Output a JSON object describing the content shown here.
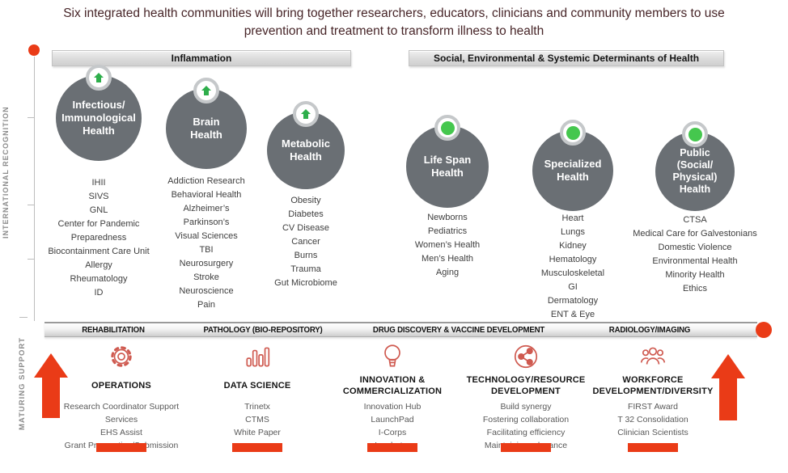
{
  "title": "Six integrated health communities will bring together researchers, educators, clinicians and community members to use prevention and treatment to transform illness to health",
  "axes": {
    "left_upper_label": "INTERNATIONAL RECOGNITION",
    "left_lower_label": "MATURING SUPPORT"
  },
  "group_headers": {
    "left": "Inflammation",
    "right": "Social, Environmental & Systemic Determinants of Health"
  },
  "communities": [
    {
      "name": "Infectious/ Immunological Health",
      "badge": "growth-arrow",
      "items": [
        "IHII",
        "SIVS",
        "GNL",
        "Center for Pandemic Preparedness",
        "Biocontainment Care Unit",
        "Allergy",
        "Rheumatology",
        "ID"
      ]
    },
    {
      "name": "Brain Health",
      "badge": "growth-arrow",
      "items": [
        "Addiction Research",
        "Behavioral Health",
        "Alzheimer’s",
        "Parkinson’s",
        "Visual Sciences",
        "TBI",
        "Neurosurgery",
        "Stroke",
        "Neuroscience",
        "Pain"
      ]
    },
    {
      "name": "Metabolic Health",
      "badge": "growth-arrow",
      "items": [
        "Obesity",
        "Diabetes",
        "CV Disease",
        "Cancer",
        "Burns",
        "Trauma",
        "Gut Microbiome"
      ]
    },
    {
      "name": "Life Span Health",
      "badge": "green-dot",
      "items": [
        "Newborns",
        "Pediatrics",
        "Women’s Health",
        "Men’s Health",
        "Aging"
      ]
    },
    {
      "name": "Specialized Health",
      "badge": "green-dot",
      "items": [
        "Heart",
        "Lungs",
        "Kidney",
        "Hematology",
        "Musculoskeletal",
        "GI",
        "Dermatology",
        "ENT & Eye"
      ]
    },
    {
      "name": "Public (Social/ Physical) Health",
      "badge": "green-dot",
      "items": [
        "CTSA",
        "Medical Care for Galvestonians",
        "Domestic Violence",
        "Environmental Health",
        "Minority Health",
        "Ethics"
      ]
    }
  ],
  "core_services": [
    "REHABILITATION",
    "PATHOLOGY (BIO-REPOSITORY)",
    "DRUG DISCOVERY & VACCINE DEVELOPMENT",
    "RADIOLOGY/IMAGING"
  ],
  "support_columns": [
    {
      "icon": "gear-icon",
      "title": "OPERATIONS",
      "items": [
        "Research Coordinator Support Services",
        "EHS Assist",
        "Grant Preparation/Submission"
      ]
    },
    {
      "icon": "bar-chart-icon",
      "title": "DATA SCIENCE",
      "items": [
        "Trinetx",
        "CTMS",
        "White Paper"
      ]
    },
    {
      "icon": "lightbulb-icon",
      "title": "INNOVATION & COMMERCIALIZATION",
      "items": [
        "Innovation Hub",
        "LaunchPad",
        "I-Corps",
        "Incubator"
      ]
    },
    {
      "icon": "share-network-icon",
      "title": "TECHNOLOGY/RESOURCE DEVELOPMENT",
      "items": [
        "Build synergy",
        "Fostering collaboration",
        "Facilitating efficiency",
        "Maintaining relevance"
      ]
    },
    {
      "icon": "people-icon",
      "title": "WORKFORCE DEVELOPMENT/DIVERSITY",
      "items": [
        "FIRST Award",
        "T 32 Consolidation",
        "Clinician Scientists"
      ]
    }
  ],
  "colors": {
    "accent_red": "#EA3B17",
    "icon_stroke": "#CF5A50",
    "circle_gray": "#6A6F74",
    "badge_silver": "#C5C8CA",
    "green_arrow": "#2EAE4B",
    "green_dot": "#45C74E",
    "header_bar": "#D9D9D9",
    "title_text": "#472528"
  }
}
